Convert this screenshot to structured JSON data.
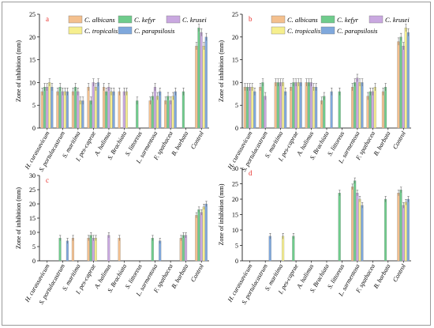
{
  "figure": {
    "legend_entries": [
      "C. albicans",
      "C. kefyr",
      "C. krusei",
      "C. tropicalis",
      "C. parapsilosis"
    ]
  },
  "colors": {
    "C. albicans": "#f4c08e",
    "C. kefyr": "#6fcc8c",
    "C. krusei": "#c9a8e0",
    "C. tropicalis": "#f6ef8e",
    "C. parapsilosis": "#7fa8dc",
    "label_red": "#e8302c"
  },
  "chart_data": [
    {
      "type": "bar",
      "panel_label": "a",
      "ylabel": "Zone of inhibition (mm)",
      "xlabel": "",
      "ylim": [
        0,
        25
      ],
      "yticks": [
        0,
        5,
        10,
        15,
        20,
        25
      ],
      "categories": [
        "H. curassavicum",
        "S. portulacastrum",
        "S. maritima",
        "I. pes-caprae",
        "A. halimus",
        "S. Brachiata",
        "S. littoreus",
        "L. sarmentosa",
        "F. spathacea",
        "B. barbata",
        "Control"
      ],
      "series": [
        {
          "name": "C. albicans",
          "values": [
            8,
            8,
            8,
            9,
            9,
            8,
            0,
            6,
            6,
            0,
            18
          ]
        },
        {
          "name": "C. kefyr",
          "values": [
            9,
            9,
            9,
            6,
            8,
            0,
            6,
            7,
            7,
            8,
            22
          ]
        },
        {
          "name": "C. krusei",
          "values": [
            9,
            8,
            8,
            10,
            9,
            8,
            0,
            9,
            6,
            0,
            21
          ]
        },
        {
          "name": "C. tropicalis",
          "values": [
            10,
            8,
            6,
            9,
            8,
            8,
            0,
            7,
            7,
            0,
            18
          ]
        },
        {
          "name": "C. parapsilosis",
          "values": [
            9,
            8,
            6,
            10,
            8,
            0,
            0,
            8,
            8,
            0,
            20
          ]
        }
      ],
      "legend": "top-center"
    },
    {
      "type": "bar",
      "panel_label": "b",
      "ylabel": "Zone of inhibition (mm)",
      "xlabel": "",
      "ylim": [
        0,
        25
      ],
      "yticks": [
        0,
        5,
        10,
        15,
        20,
        25
      ],
      "categories": [
        "H. curassavicum",
        "S. portulacastrum",
        "S. maritima",
        "I. pes-caprae",
        "A. halimus",
        "S. Brachiata",
        "S. littoreus",
        "L. sarmentosa",
        "F. spathacea",
        "B. barbata",
        "Control"
      ],
      "series": [
        {
          "name": "C. albicans",
          "values": [
            9,
            9,
            10,
            9,
            10,
            6,
            0,
            9,
            7,
            8,
            19
          ]
        },
        {
          "name": "C. kefyr",
          "values": [
            9,
            10,
            10,
            10,
            10,
            7,
            8,
            10,
            8,
            9,
            20
          ]
        },
        {
          "name": "C. krusei",
          "values": [
            9,
            7,
            10,
            10,
            10,
            0,
            0,
            11,
            8,
            0,
            18
          ]
        },
        {
          "name": "C. tropicalis",
          "values": [
            9,
            0,
            10,
            10,
            9,
            0,
            0,
            10,
            9,
            0,
            22
          ]
        },
        {
          "name": "C. parapsilosis",
          "values": [
            8,
            0,
            8,
            10,
            9,
            8,
            0,
            10,
            0,
            0,
            21
          ]
        }
      ],
      "legend": "top-center"
    },
    {
      "type": "bar",
      "panel_label": "c",
      "ylabel": "Zone of inhibition (mm)",
      "xlabel": "",
      "ylim": [
        0,
        30
      ],
      "yticks": [
        0,
        5,
        10,
        15,
        20,
        25,
        30
      ],
      "categories": [
        "H. curassavicum",
        "S. portulacastrum",
        "S. maritima",
        "I. pes-caprae",
        "A. halimus",
        "S. Brachiata",
        "S. littoreus",
        "L. sarmentosa",
        "F. spathacea",
        "B. barbata",
        "Control"
      ],
      "series": [
        {
          "name": "C. albicans",
          "values": [
            0,
            0,
            8,
            8,
            0,
            8,
            0,
            0,
            0,
            8,
            16
          ]
        },
        {
          "name": "C. kefyr",
          "values": [
            0,
            8,
            0,
            9,
            0,
            0,
            0,
            8,
            0,
            9,
            18
          ]
        },
        {
          "name": "C. krusei",
          "values": [
            0,
            0,
            0,
            8,
            9,
            0,
            0,
            0,
            0,
            9,
            17
          ]
        },
        {
          "name": "C. tropicalis",
          "values": [
            0,
            0,
            0,
            8,
            0,
            0,
            0,
            0,
            0,
            0,
            19
          ]
        },
        {
          "name": "C. parapsilosis",
          "values": [
            0,
            7,
            0,
            0,
            0,
            0,
            0,
            7,
            0,
            0,
            20
          ]
        }
      ],
      "legend": "none"
    },
    {
      "type": "bar",
      "panel_label": "d",
      "ylabel": "Zone of inhibition (mm)",
      "xlabel": "",
      "ylim": [
        0,
        30
      ],
      "yticks": [
        0,
        5,
        10,
        15,
        20,
        25,
        30
      ],
      "categories": [
        "H. curassavicum",
        "S. portulacastrum",
        "S. maritima",
        "I. pes-caprae",
        "A. halimus",
        "S. Brachiata",
        "S. littoreus",
        "L. sarmentosa",
        "F. spathacea",
        "B. barbata",
        "Control"
      ],
      "series": [
        {
          "name": "C. albicans",
          "values": [
            0,
            0,
            0,
            0,
            0,
            0,
            0,
            24,
            0,
            0,
            22
          ]
        },
        {
          "name": "C. kefyr",
          "values": [
            0,
            0,
            0,
            8,
            0,
            0,
            22,
            26,
            0,
            20,
            23
          ]
        },
        {
          "name": "C. krusei",
          "values": [
            0,
            0,
            0,
            0,
            0,
            0,
            0,
            22,
            0,
            0,
            18
          ]
        },
        {
          "name": "C. tropicalis",
          "values": [
            0,
            0,
            8,
            0,
            0,
            0,
            0,
            20,
            0,
            0,
            19
          ]
        },
        {
          "name": "C. parapsilosis",
          "values": [
            0,
            8,
            0,
            0,
            0,
            0,
            0,
            18,
            0,
            0,
            20
          ]
        }
      ],
      "legend": "none"
    }
  ]
}
